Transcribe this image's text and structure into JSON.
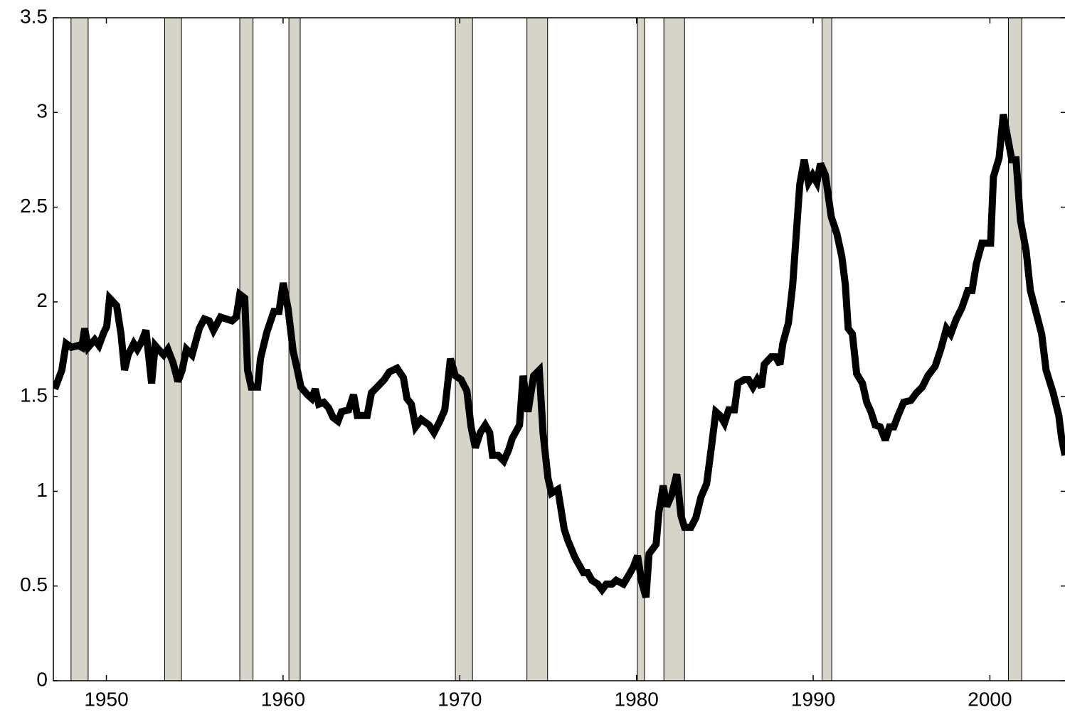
{
  "chart_data": {
    "type": "line",
    "x": [
      1947.08,
      1947.48,
      1947.72,
      1948.01,
      1948.41,
      1948.61,
      1948.77,
      1948.97,
      1949.34,
      1949.58,
      1949.86,
      1950.02,
      1950.18,
      1950.58,
      1950.83,
      1951.03,
      1951.23,
      1951.55,
      1951.75,
      1951.99,
      1952.24,
      1952.56,
      1952.76,
      1953.04,
      1953.24,
      1953.48,
      1953.77,
      1954.05,
      1954.29,
      1954.53,
      1954.85,
      1955.26,
      1955.54,
      1955.82,
      1956.06,
      1956.46,
      1956.79,
      1957.11,
      1957.35,
      1957.55,
      1957.83,
      1957.99,
      1958.2,
      1958.56,
      1958.72,
      1959.08,
      1959.48,
      1959.77,
      1960.01,
      1960.29,
      1960.57,
      1960.81,
      1961.01,
      1961.38,
      1961.62,
      1961.82,
      1962.02,
      1962.3,
      1962.58,
      1962.83,
      1963.11,
      1963.31,
      1963.71,
      1963.99,
      1964.2,
      1964.76,
      1965.0,
      1965.32,
      1965.73,
      1966.01,
      1966.45,
      1966.81,
      1967.01,
      1967.26,
      1967.5,
      1967.82,
      1968.26,
      1968.54,
      1968.87,
      1969.15,
      1969.47,
      1969.75,
      1970.07,
      1970.4,
      1970.64,
      1970.88,
      1971.16,
      1971.44,
      1971.69,
      1971.85,
      1972.17,
      1972.49,
      1972.77,
      1972.97,
      1973.38,
      1973.58,
      1973.86,
      1974.18,
      1974.5,
      1974.71,
      1974.99,
      1975.19,
      1975.55,
      1975.91,
      1976.12,
      1976.52,
      1977.0,
      1977.24,
      1977.48,
      1977.81,
      1978.05,
      1978.29,
      1978.61,
      1978.85,
      1979.26,
      1979.58,
      1979.82,
      1980.06,
      1980.3,
      1980.54,
      1980.71,
      1981.11,
      1981.27,
      1981.51,
      1981.71,
      1981.99,
      1982.28,
      1982.52,
      1982.72,
      1983.08,
      1983.36,
      1983.65,
      1983.97,
      1984.25,
      1984.49,
      1984.73,
      1984.98,
      1985.22,
      1985.54,
      1985.74,
      1986.1,
      1986.34,
      1986.59,
      1986.83,
      1987.07,
      1987.23,
      1987.63,
      1987.87,
      1988.12,
      1988.28,
      1988.6,
      1988.84,
      1989.24,
      1989.49,
      1989.73,
      1989.97,
      1990.21,
      1990.41,
      1990.69,
      1991.02,
      1991.34,
      1991.62,
      1991.82,
      1991.98,
      1992.22,
      1992.46,
      1992.79,
      1993.03,
      1993.27,
      1993.51,
      1993.79,
      1994.08,
      1994.32,
      1994.56,
      1994.8,
      1995.12,
      1995.53,
      1995.85,
      1996.17,
      1996.49,
      1996.9,
      1997.22,
      1997.54,
      1997.78,
      1998.1,
      1998.42,
      1998.75,
      1998.99,
      1999.23,
      1999.55,
      1999.79,
      2000.04,
      2000.2,
      2000.52,
      2000.76,
      2001.0,
      2001.24,
      2001.48,
      2001.73,
      2002.05,
      2002.29,
      2002.57,
      2002.93,
      2003.18,
      2003.58,
      2003.9,
      2004.06,
      2004.25
    ],
    "values": [
      1.54,
      1.64,
      1.78,
      1.76,
      1.77,
      1.76,
      1.86,
      1.76,
      1.8,
      1.77,
      1.84,
      1.87,
      2.02,
      1.98,
      1.83,
      1.64,
      1.72,
      1.78,
      1.75,
      1.79,
      1.85,
      1.57,
      1.77,
      1.74,
      1.72,
      1.75,
      1.68,
      1.58,
      1.64,
      1.75,
      1.72,
      1.86,
      1.91,
      1.9,
      1.85,
      1.92,
      1.91,
      1.9,
      1.92,
      2.04,
      2.02,
      1.64,
      1.55,
      1.55,
      1.7,
      1.84,
      1.95,
      1.95,
      2.1,
      1.96,
      1.74,
      1.64,
      1.55,
      1.51,
      1.49,
      1.54,
      1.46,
      1.47,
      1.44,
      1.39,
      1.37,
      1.42,
      1.43,
      1.51,
      1.4,
      1.4,
      1.52,
      1.55,
      1.59,
      1.63,
      1.65,
      1.6,
      1.49,
      1.46,
      1.34,
      1.38,
      1.35,
      1.31,
      1.37,
      1.43,
      1.7,
      1.61,
      1.59,
      1.53,
      1.34,
      1.23,
      1.31,
      1.35,
      1.31,
      1.19,
      1.19,
      1.16,
      1.22,
      1.28,
      1.35,
      1.61,
      1.42,
      1.61,
      1.64,
      1.31,
      1.07,
      0.99,
      1.01,
      0.8,
      0.74,
      0.65,
      0.57,
      0.57,
      0.53,
      0.51,
      0.48,
      0.51,
      0.51,
      0.53,
      0.51,
      0.56,
      0.6,
      0.66,
      0.52,
      0.44,
      0.67,
      0.72,
      0.89,
      1.03,
      0.92,
      0.98,
      1.09,
      0.87,
      0.81,
      0.81,
      0.86,
      0.97,
      1.04,
      1.24,
      1.42,
      1.4,
      1.36,
      1.43,
      1.43,
      1.57,
      1.59,
      1.59,
      1.55,
      1.59,
      1.55,
      1.67,
      1.71,
      1.71,
      1.67,
      1.78,
      1.89,
      2.09,
      2.62,
      2.75,
      2.63,
      2.67,
      2.63,
      2.73,
      2.67,
      2.45,
      2.36,
      2.24,
      2.09,
      1.86,
      1.83,
      1.62,
      1.57,
      1.47,
      1.42,
      1.35,
      1.34,
      1.27,
      1.34,
      1.34,
      1.4,
      1.47,
      1.48,
      1.52,
      1.55,
      1.61,
      1.66,
      1.75,
      1.86,
      1.83,
      1.91,
      1.97,
      2.06,
      2.06,
      2.2,
      2.31,
      2.31,
      2.31,
      2.66,
      2.76,
      2.99,
      2.87,
      2.75,
      2.75,
      2.43,
      2.27,
      2.06,
      1.96,
      1.83,
      1.64,
      1.52,
      1.4,
      1.28,
      1.19
    ],
    "color": "#000000",
    "shaded_periods": [
      [
        1948.0,
        1948.97
      ],
      [
        1953.3,
        1954.25
      ],
      [
        1957.55,
        1958.3
      ],
      [
        1960.33,
        1960.97
      ],
      [
        1969.75,
        1970.72
      ],
      [
        1973.8,
        1974.97
      ],
      [
        1980.05,
        1980.45
      ],
      [
        1981.55,
        1982.72
      ],
      [
        1990.5,
        1991.05
      ],
      [
        2001.05,
        2001.8
      ]
    ],
    "shade_color": "#d6d3c8",
    "xlim": [
      1947,
      2004.25
    ],
    "xticks": [
      1950,
      1960,
      1970,
      1980,
      1990,
      2000
    ],
    "ylim": [
      0,
      3.5
    ],
    "yticks": [
      0,
      0.5,
      1,
      1.5,
      2,
      2.5,
      3,
      3.5
    ],
    "grid": false
  }
}
